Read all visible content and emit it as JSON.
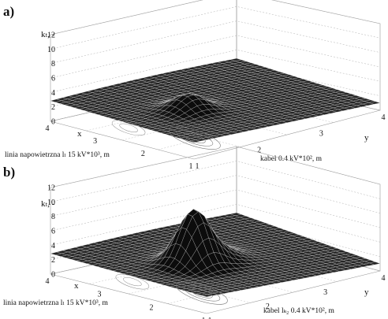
{
  "chart_data": [
    {
      "type": "surface",
      "panel_label": "a)",
      "zlabel": "kₜ, -",
      "xlabel": "x",
      "ylabel": "y",
      "x_caption": "linia napowietrzna lₗ 15 kV*10³, m",
      "y_caption": "kabel 0.4 kV*10², m",
      "zlim": [
        0,
        12
      ],
      "z_ticks": [
        "0",
        "2",
        "4",
        "6",
        "8",
        "10",
        "12"
      ],
      "x_ticks": [
        "1",
        "2",
        "3",
        "4"
      ],
      "y_ticks": [
        "1",
        "2",
        "3",
        "4"
      ],
      "grid": true,
      "surface_color": "#1a1a1a",
      "peak_value": 5.2
    },
    {
      "type": "surface",
      "panel_label": "b)",
      "zlabel": "kₜ, -",
      "xlabel": "x",
      "ylabel": "y",
      "x_caption": "linia napowietrzna lₗ 15 kV*10³, m",
      "y_caption": "kabel lₖ₂ 0.4 kV*10², m",
      "zlim": [
        0,
        12
      ],
      "z_ticks": [
        "0",
        "2",
        "4",
        "6",
        "8",
        "10",
        "12"
      ],
      "x_ticks": [
        "1",
        "2",
        "3",
        "4"
      ],
      "y_ticks": [
        "1",
        "2",
        "3",
        "4"
      ],
      "grid": true,
      "surface_color": "#1a1a1a",
      "peak_value": 10
    }
  ]
}
